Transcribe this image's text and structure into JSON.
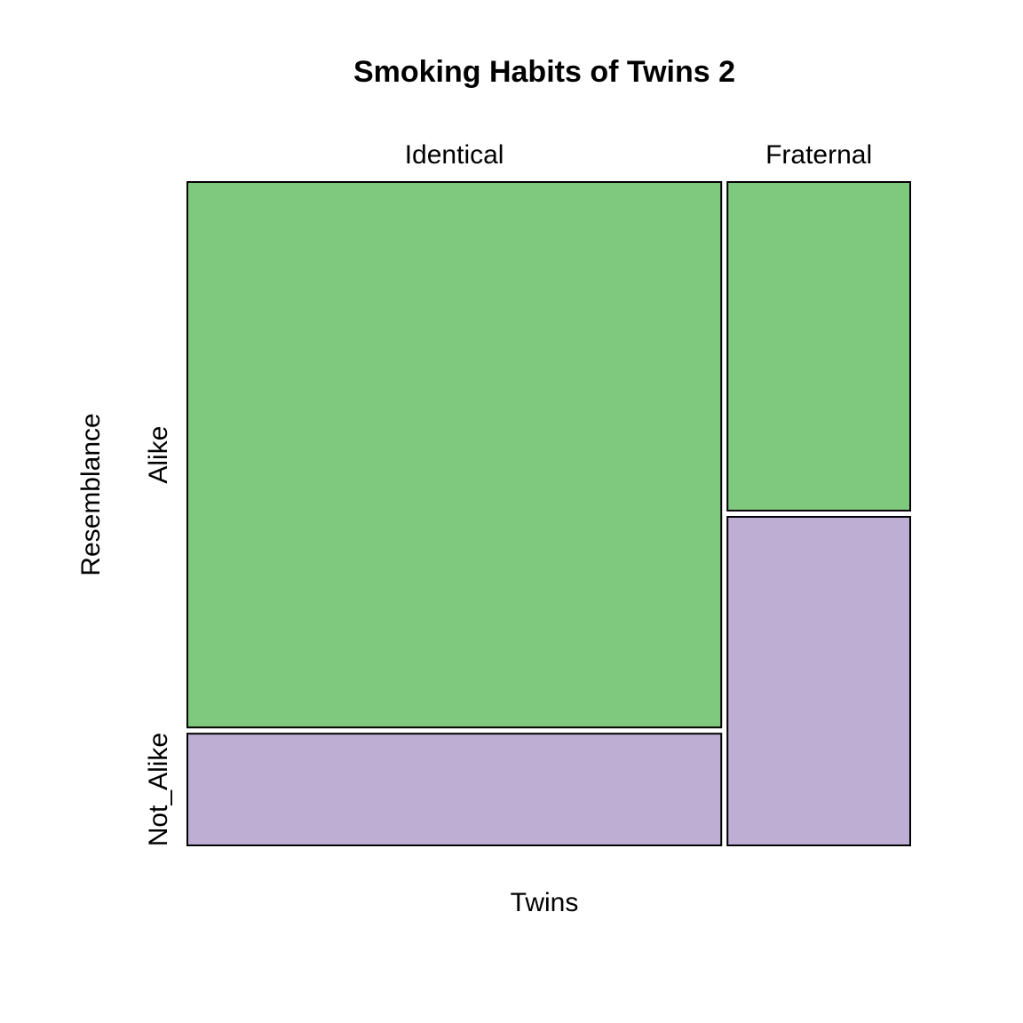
{
  "chart_data": {
    "type": "mosaic",
    "title": "Smoking Habits of Twins 2",
    "xlabel": "Twins",
    "ylabel": "Resemblance",
    "x_categories": [
      "Identical",
      "Fraternal"
    ],
    "y_categories": [
      "Alike",
      "Not_Alike"
    ],
    "column_fractions": [
      0.745,
      0.255
    ],
    "cells": [
      {
        "x": "Identical",
        "y": "Alike",
        "fraction": 0.83
      },
      {
        "x": "Identical",
        "y": "Not_Alike",
        "fraction": 0.17
      },
      {
        "x": "Fraternal",
        "y": "Alike",
        "fraction": 0.5
      },
      {
        "x": "Fraternal",
        "y": "Not_Alike",
        "fraction": 0.5
      }
    ],
    "colors": {
      "Alike": "#7fc97f",
      "Not_Alike": "#beaed4"
    }
  }
}
